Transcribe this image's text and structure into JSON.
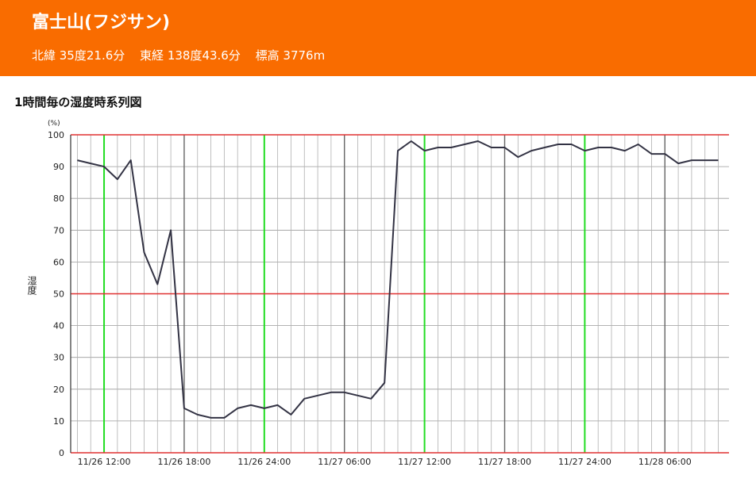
{
  "header": {
    "station_name": "富士山(フジサン)",
    "latitude": "北緯 35度21.6分",
    "longitude": "東経 138度43.6分",
    "elevation": "標高 3776m",
    "bg_color": "#f96c00"
  },
  "chart_title": "1時間毎の湿度時系列図",
  "chart_data": {
    "type": "line",
    "title": "1時間毎の湿度時系列図",
    "ylabel": "湿度",
    "yunit": "(%)",
    "ylim": [
      0,
      100
    ],
    "yticks": [
      0,
      10,
      20,
      30,
      40,
      50,
      60,
      70,
      80,
      90,
      100
    ],
    "grid": true,
    "x_tick_labels": [
      "11/26 12:00",
      "11/26 18:00",
      "11/26 24:00",
      "11/27 06:00",
      "11/27 12:00",
      "11/27 18:00",
      "11/27 24:00",
      "11/28 06:00"
    ],
    "x_hours": [
      10,
      11,
      12,
      13,
      14,
      15,
      16,
      17,
      18,
      19,
      20,
      21,
      22,
      23,
      24,
      25,
      26,
      27,
      28,
      29,
      30,
      31,
      32,
      33,
      34,
      35,
      36,
      37,
      38,
      39,
      40,
      41,
      42,
      43,
      44,
      45,
      46,
      47,
      48,
      49,
      50,
      51,
      52,
      53,
      54,
      55,
      56,
      57,
      58
    ],
    "series": [
      {
        "values": [
          92,
          91,
          90,
          86,
          92,
          63,
          53,
          70,
          14,
          12,
          11,
          11,
          14,
          15,
          14,
          15,
          12,
          17,
          18,
          19,
          19,
          18,
          17,
          22,
          95,
          98,
          95,
          96,
          96,
          97,
          98,
          96,
          96,
          93,
          95,
          96,
          97,
          97,
          95,
          96,
          96,
          95,
          97,
          94,
          94,
          91,
          92,
          92,
          92
        ],
        "color": "#333344"
      }
    ],
    "reference_lines": {
      "y": [
        50
      ],
      "color": "#e03030"
    },
    "day_boundaries_color": "#22dd22"
  }
}
